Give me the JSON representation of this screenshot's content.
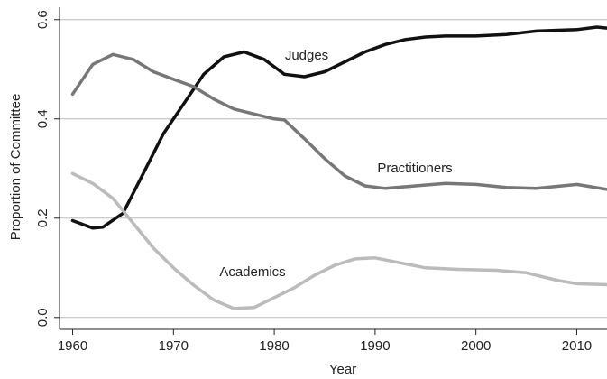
{
  "chart_data": {
    "type": "line",
    "xlabel": "Year",
    "ylabel": "Proportion of Committee",
    "xlim": [
      1958.7,
      2013
    ],
    "xticks": [
      1960,
      1970,
      1980,
      1990,
      2000,
      2010
    ],
    "ylim": [
      -0.024,
      0.625
    ],
    "yticks": [
      {
        "value": 0,
        "label": "0.0"
      },
      0.2,
      0.4,
      0.6
    ],
    "grid": true,
    "series": [
      {
        "name": "Judges",
        "color": "#111111",
        "x": [
          1960,
          1962,
          1963,
          1965,
          1967,
          1969,
          1971,
          1973,
          1975,
          1977,
          1979,
          1980,
          1981,
          1983,
          1985,
          1987,
          1989,
          1991,
          1993,
          1995,
          1997,
          2000,
          2003,
          2006,
          2010,
          2012,
          2013
        ],
        "values": [
          0.195,
          0.18,
          0.182,
          0.21,
          0.29,
          0.37,
          0.43,
          0.49,
          0.525,
          0.535,
          0.52,
          0.505,
          0.49,
          0.485,
          0.495,
          0.515,
          0.535,
          0.55,
          0.56,
          0.565,
          0.567,
          0.567,
          0.57,
          0.577,
          0.58,
          0.585,
          0.583
        ]
      },
      {
        "name": "Practitioners",
        "color": "#777777",
        "x": [
          1960,
          1962,
          1964,
          1966,
          1968,
          1970,
          1972,
          1974,
          1976,
          1978,
          1980,
          1981,
          1983,
          1985,
          1987,
          1989,
          1991,
          1994,
          1997,
          2000,
          2003,
          2006,
          2010,
          2013
        ],
        "values": [
          0.45,
          0.51,
          0.53,
          0.52,
          0.495,
          0.48,
          0.465,
          0.44,
          0.42,
          0.41,
          0.4,
          0.398,
          0.36,
          0.32,
          0.285,
          0.265,
          0.26,
          0.265,
          0.27,
          0.268,
          0.262,
          0.26,
          0.268,
          0.258
        ]
      },
      {
        "name": "Academics",
        "color": "#bbbbbb",
        "x": [
          1960,
          1962,
          1964,
          1966,
          1968,
          1970,
          1972,
          1974,
          1976,
          1978,
          1980,
          1982,
          1984,
          1986,
          1988,
          1990,
          1992,
          1995,
          1998,
          2002,
          2005,
          2008,
          2010,
          2013
        ],
        "values": [
          0.29,
          0.27,
          0.24,
          0.19,
          0.14,
          0.1,
          0.065,
          0.035,
          0.018,
          0.02,
          0.04,
          0.06,
          0.085,
          0.105,
          0.118,
          0.12,
          0.112,
          0.1,
          0.097,
          0.095,
          0.09,
          0.075,
          0.068,
          0.066
        ]
      }
    ]
  }
}
